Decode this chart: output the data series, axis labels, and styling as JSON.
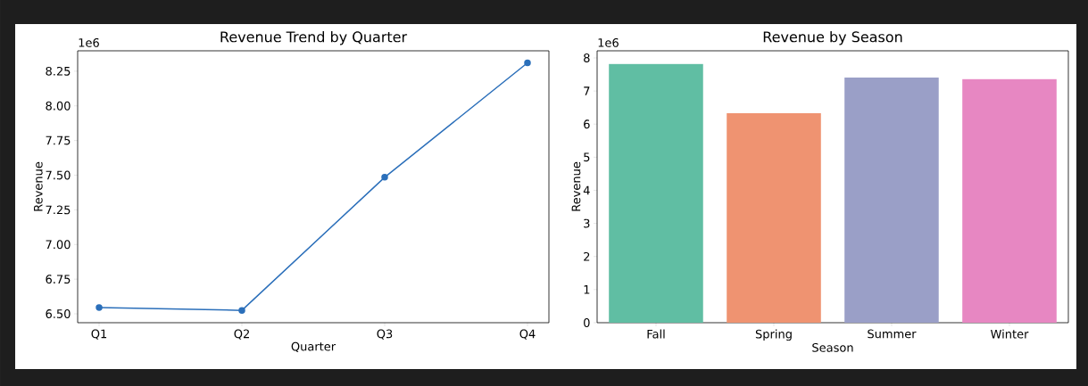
{
  "chart_data": [
    {
      "type": "line",
      "title": "Revenue Trend by Quarter",
      "xlabel": "Quarter",
      "ylabel": "Revenue",
      "annotations": [
        "1e6"
      ],
      "categories": [
        "Q1",
        "Q2",
        "Q3",
        "Q4"
      ],
      "series": [
        {
          "color": "#2b6fba",
          "values": [
            6.545,
            6.525,
            7.485,
            8.31
          ]
        }
      ],
      "ylim": [
        6.436,
        8.397
      ],
      "yticks": [
        {
          "value": 6.5,
          "label": "6.50"
        },
        {
          "value": 6.75,
          "label": "6.75"
        },
        {
          "value": 7.0,
          "label": "7.00"
        },
        {
          "value": 7.25,
          "label": "7.25"
        },
        {
          "value": 7.5,
          "label": "7.50"
        },
        {
          "value": 7.75,
          "label": "7.75"
        },
        {
          "value": 8.0,
          "label": "8.00"
        },
        {
          "value": 8.25,
          "label": "8.25"
        }
      ],
      "marker": "circle"
    },
    {
      "type": "bar",
      "title": "Revenue by Season",
      "xlabel": "Season",
      "ylabel": "Revenue",
      "annotations": [
        "1e6"
      ],
      "categories": [
        "Fall",
        "Spring",
        "Summer",
        "Winter"
      ],
      "values": [
        7.82,
        6.33,
        7.41,
        7.36
      ],
      "colors": [
        "#60bea3",
        "#ef9371",
        "#9a9fc7",
        "#e787c2"
      ],
      "ylim": [
        0,
        8.215
      ],
      "yticks": [
        0,
        1,
        2,
        3,
        4,
        5,
        6,
        7,
        8
      ]
    }
  ]
}
